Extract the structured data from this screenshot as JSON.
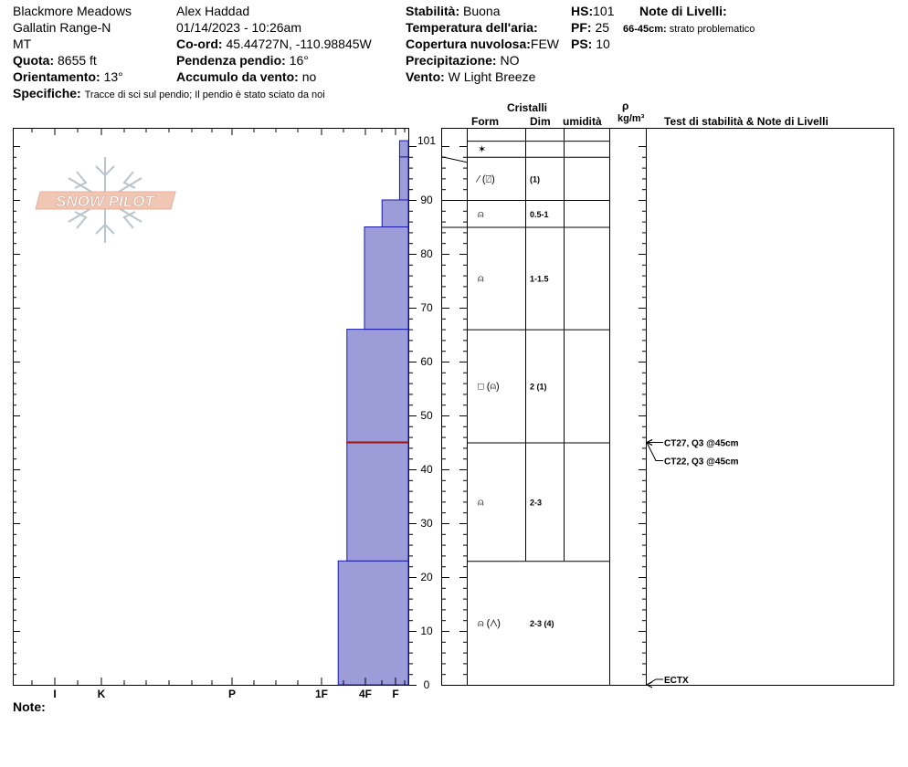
{
  "header": {
    "location": "Blackmore Meadows",
    "range": "Gallatin Range-N",
    "state": "MT",
    "quota_label": "Quota:",
    "quota_value": "8655 ft",
    "orient_label": "Orientamento:",
    "orient_value": "13°",
    "specifiche_label": "Specifiche:",
    "specifiche_value": "Tracce di sci sul pendio;  Il pendio è stato sciato da noi",
    "observer": "Alex Haddad",
    "datetime": "01/14/2023 - 10:26am",
    "coord_label": "Co-ord:",
    "coord_value": "45.44727N, -110.98845W",
    "pendenza_label": "Pendenza pendio:",
    "pendenza_value": "16°",
    "accumulo_label": "Accumulo da vento:",
    "accumulo_value": "no",
    "stabilita_label": "Stabilità:",
    "stabilita_value": "Buona",
    "temp_label": "Temperatura dell'aria:",
    "nuvolosa_label": "Copertura nuvolosa:",
    "nuvolosa_value": "FEW",
    "precip_label": "Precipitazione:",
    "precip_value": "NO",
    "vento_label": "Vento:",
    "vento_value": "W Light Breeze",
    "hs_label": "HS:",
    "hs_value": "101",
    "pf_label": "PF:",
    "pf_value": "25",
    "ps_label": "PS:",
    "ps_value": "10",
    "note_livelli_label": "Note di Livelli:",
    "note_livelli_range": "66-45cm:",
    "note_livelli_text": "strato problematico",
    "note_label": "Note:"
  },
  "logo": {
    "text": "SNOW PILOT"
  },
  "columns": {
    "cristalli": "Cristalli",
    "form": "Form",
    "dim": "Dim",
    "umidita": "umidità",
    "rho": "ρ",
    "density_unit": "kg/m³",
    "tests": "Test di stabilità & Note di Livelli"
  },
  "colors": {
    "layer_fill": "#9c9cd8",
    "layer_stroke": "#1a1aa8",
    "weak_layer": "#a01010"
  },
  "chart_data": {
    "type": "bar",
    "orientation": "horizontal",
    "y_unit": "cm",
    "ylim": [
      0,
      104
    ],
    "y_ticks": [
      0,
      10,
      20,
      30,
      40,
      50,
      60,
      70,
      80,
      90,
      101
    ],
    "x_tick_labels": [
      "I",
      "K",
      "P",
      "1F",
      "4F",
      "F"
    ],
    "hardness_scale": [
      "F",
      "4F",
      "1F",
      "P",
      "K",
      "I"
    ],
    "layers": [
      {
        "bottom": 0,
        "top": 23,
        "hardness_units": 1.6,
        "form": "⍝ (⋀)",
        "dim": "2-3 (4)"
      },
      {
        "bottom": 23,
        "top": 45,
        "hardness_units": 1.4,
        "form": "⍝",
        "dim": "2-3"
      },
      {
        "bottom": 45,
        "top": 66,
        "hardness_units": 1.4,
        "form": "□ (⍝)",
        "dim": "2 (1)"
      },
      {
        "bottom": 66,
        "top": 85,
        "hardness_units": 1.0,
        "form": "⍝",
        "dim": "1-1.5"
      },
      {
        "bottom": 85,
        "top": 90,
        "hardness_units": 0.6,
        "form": "⍝",
        "dim": "0.5-1"
      },
      {
        "bottom": 90,
        "top": 98,
        "hardness_units": 0.2,
        "form": "⁄ (⍁)",
        "dim": "(1)"
      },
      {
        "bottom": 98,
        "top": 101,
        "hardness_units": 0.2,
        "form": "✶",
        "dim": ""
      }
    ],
    "weak_layer_depth": 45,
    "stability_tests": [
      {
        "label": "CT27, Q3 @45cm",
        "height": 45
      },
      {
        "label": "CT22, Q3 @45cm",
        "height": 45
      },
      {
        "label": "ECTX",
        "height": 0
      }
    ]
  }
}
